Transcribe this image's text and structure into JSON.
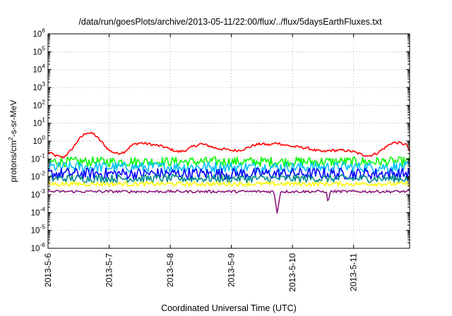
{
  "chart_data": {
    "type": "line",
    "title": "/data/run/goesPlots/archive/2013-05-11/22:00/flux/../flux/5daysEarthFluxes.txt",
    "xlabel": "Coordinated Universal Time (UTC)",
    "ylabel": {
      "prefix": "protons/cm",
      "sup": "2",
      "suffix": "-s-sr-MeV"
    },
    "y_scale": "log",
    "ylim": [
      1e-06,
      1000000.0
    ],
    "y_ticks": [
      {
        "value": 1e-06,
        "base": "10",
        "exp": "-6"
      },
      {
        "value": 1e-05,
        "base": "10",
        "exp": "-5"
      },
      {
        "value": 0.0001,
        "base": "10",
        "exp": "-4"
      },
      {
        "value": 0.001,
        "base": "10",
        "exp": "-3"
      },
      {
        "value": 0.01,
        "base": "10",
        "exp": "-2"
      },
      {
        "value": 0.1,
        "base": "10",
        "exp": "-1"
      },
      {
        "value": 1,
        "base": "10",
        "exp": "0"
      },
      {
        "value": 10.0,
        "base": "10",
        "exp": "1"
      },
      {
        "value": 100.0,
        "base": "10",
        "exp": "2"
      },
      {
        "value": 1000.0,
        "base": "10",
        "exp": "3"
      },
      {
        "value": 10000.0,
        "base": "10",
        "exp": "4"
      },
      {
        "value": 100000.0,
        "base": "10",
        "exp": "5"
      },
      {
        "value": 1000000.0,
        "base": "10",
        "exp": "6"
      }
    ],
    "xlim": [
      "2013-05-06",
      "2013-05-11 22:00"
    ],
    "x_ticks": [
      {
        "value": "2013-05-06",
        "label": "2013-5-6"
      },
      {
        "value": "2013-05-07",
        "label": "2013-5-7"
      },
      {
        "value": "2013-05-08",
        "label": "2013-5-8"
      },
      {
        "value": "2013-05-09",
        "label": "2013-5-9"
      },
      {
        "value": "2013-05-10",
        "label": "2013-5-10"
      },
      {
        "value": "2013-05-11",
        "label": "2013-5-11"
      }
    ],
    "grid": true,
    "legend": "none",
    "series": [
      {
        "color": "#ff0000",
        "base": 0.1,
        "spike": 0.15,
        "points": [
          [
            "2013-05-06 00:00",
            0.25
          ],
          [
            "2013-05-06 03:00",
            0.15
          ],
          [
            "2013-05-06 06:00",
            0.12
          ],
          [
            "2013-05-06 09:00",
            0.3
          ],
          [
            "2013-05-06 12:00",
            1.2
          ],
          [
            "2013-05-06 15:00",
            3.0
          ],
          [
            "2013-05-06 18:00",
            2.5
          ],
          [
            "2013-05-06 21:00",
            0.9
          ],
          [
            "2013-05-07 00:00",
            0.3
          ],
          [
            "2013-05-07 03:00",
            0.2
          ],
          [
            "2013-05-07 06:00",
            0.25
          ],
          [
            "2013-05-07 09:00",
            0.6
          ],
          [
            "2013-05-07 12:00",
            0.8
          ],
          [
            "2013-05-07 15:00",
            0.7
          ],
          [
            "2013-05-07 18:00",
            0.6
          ],
          [
            "2013-05-07 21:00",
            0.5
          ],
          [
            "2013-05-08 00:00",
            0.35
          ],
          [
            "2013-05-08 03:00",
            0.25
          ],
          [
            "2013-05-08 06:00",
            0.3
          ],
          [
            "2013-05-08 09:00",
            0.5
          ],
          [
            "2013-05-08 12:00",
            0.7
          ],
          [
            "2013-05-08 15:00",
            0.55
          ],
          [
            "2013-05-08 18:00",
            0.4
          ],
          [
            "2013-05-08 21:00",
            0.35
          ],
          [
            "2013-05-09 00:00",
            0.3
          ],
          [
            "2013-05-09 03:00",
            0.3
          ],
          [
            "2013-05-09 06:00",
            0.4
          ],
          [
            "2013-05-09 09:00",
            0.6
          ],
          [
            "2013-05-09 12:00",
            0.7
          ],
          [
            "2013-05-09 15:00",
            0.6
          ],
          [
            "2013-05-09 18:00",
            0.8
          ],
          [
            "2013-05-09 21:00",
            0.6
          ],
          [
            "2013-05-10 00:00",
            0.5
          ],
          [
            "2013-05-10 03:00",
            0.45
          ],
          [
            "2013-05-10 06:00",
            0.4
          ],
          [
            "2013-05-10 09:00",
            0.3
          ],
          [
            "2013-05-10 12:00",
            0.25
          ],
          [
            "2013-05-10 15:00",
            0.3
          ],
          [
            "2013-05-10 18:00",
            0.3
          ],
          [
            "2013-05-10 21:00",
            0.3
          ],
          [
            "2013-05-11 00:00",
            0.25
          ],
          [
            "2013-05-11 03:00",
            0.18
          ],
          [
            "2013-05-11 06:00",
            0.15
          ],
          [
            "2013-05-11 09:00",
            0.2
          ],
          [
            "2013-05-11 12:00",
            0.4
          ],
          [
            "2013-05-11 15:00",
            0.8
          ],
          [
            "2013-05-11 18:00",
            0.8
          ],
          [
            "2013-05-11 21:00",
            0.6
          ],
          [
            "2013-05-11 22:00",
            0.25
          ]
        ]
      },
      {
        "color": "#00ff00",
        "base": 0.07,
        "spike": 0.55,
        "points": [
          [
            "2013-05-06 00:00",
            0.07
          ],
          [
            "2013-05-11 22:00",
            0.07
          ]
        ]
      },
      {
        "color": "#00c0ff",
        "base": 0.035,
        "spike": 0.6,
        "points": [
          [
            "2013-05-06 00:00",
            0.035
          ],
          [
            "2013-05-11 22:00",
            0.035
          ]
        ]
      },
      {
        "color": "#0000ff",
        "base": 0.015,
        "spike": 0.65,
        "points": [
          [
            "2013-05-06 00:00",
            0.015
          ],
          [
            "2013-05-11 22:00",
            0.015
          ]
        ]
      },
      {
        "color": "#008b8b",
        "base": 0.008,
        "spike": 0.45,
        "points": [
          [
            "2013-05-06 00:00",
            0.008
          ],
          [
            "2013-05-11 22:00",
            0.008
          ]
        ]
      },
      {
        "color": "#ffff00",
        "base": 0.004,
        "spike": 0.25,
        "points": [
          [
            "2013-05-06 00:00",
            0.004
          ],
          [
            "2013-05-11 22:00",
            0.004
          ]
        ]
      },
      {
        "color": "#8b1a7a",
        "base": 0.0015,
        "spike": 0.15,
        "dips": [
          [
            "2013-05-09 18:00",
            8e-05
          ],
          [
            "2013-05-10 14:00",
            0.0003
          ]
        ],
        "points": [
          [
            "2013-05-06 00:00",
            0.0015
          ],
          [
            "2013-05-11 22:00",
            0.0015
          ]
        ]
      }
    ]
  }
}
